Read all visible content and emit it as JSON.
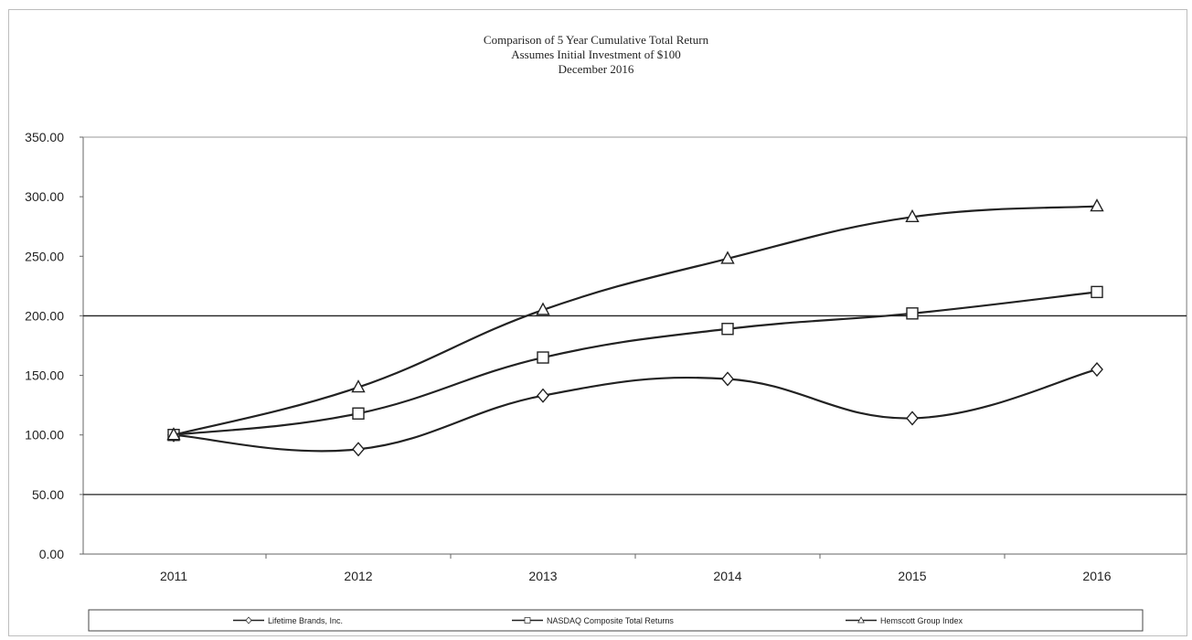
{
  "chart_data": {
    "type": "line",
    "title": "Comparison of 5 Year Cumulative Total Return",
    "subtitle": [
      "Assumes Initial Investment of $100",
      "December 2016"
    ],
    "xlabel": "",
    "ylabel": "",
    "categories": [
      "2011",
      "2012",
      "2013",
      "2014",
      "2015",
      "2016"
    ],
    "ylim": [
      0,
      350
    ],
    "yticks": [
      "0.00",
      "50.00",
      "100.00",
      "150.00",
      "200.00",
      "250.00",
      "300.00",
      "350.00"
    ],
    "grid": "horizontal lines at 50 and 200",
    "legend_position": "bottom",
    "series": [
      {
        "name": "Lifetime Brands, Inc.",
        "marker": "diamond",
        "values": [
          100,
          88,
          133,
          147,
          114,
          155
        ]
      },
      {
        "name": "NASDAQ Composite Total Returns",
        "marker": "square",
        "values": [
          100,
          118,
          165,
          189,
          202,
          220
        ]
      },
      {
        "name": "Hemscott Group Index",
        "marker": "triangle",
        "values": [
          100,
          140,
          205,
          248,
          283,
          292
        ]
      }
    ],
    "colors": {
      "line": "#222222",
      "marker_fill": "#ffffff",
      "grid": "#222222"
    }
  }
}
